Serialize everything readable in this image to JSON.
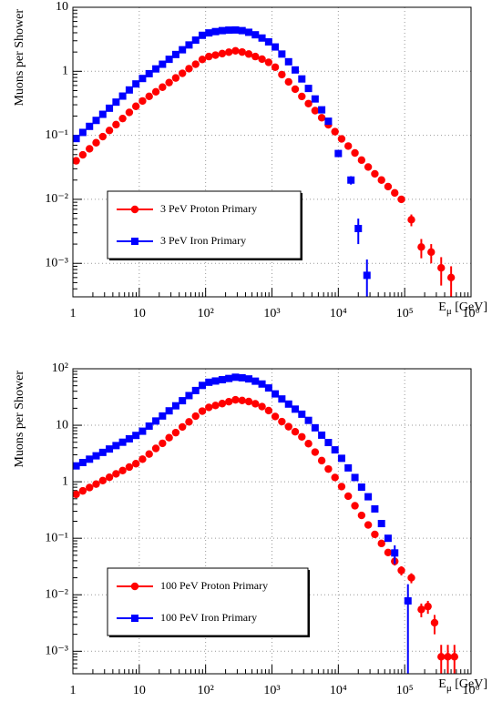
{
  "chart_data": [
    {
      "type": "scatter",
      "ylabel": "Muons per Shower",
      "xlabel": [
        "E",
        "μ",
        " [GeV]"
      ],
      "xlog": true,
      "ylog": true,
      "grid": true,
      "legend": "lower left",
      "xlim": [
        1,
        1000000
      ],
      "ylim": [
        0.0003,
        10
      ],
      "xticks": [
        1,
        10,
        {
          "value": 100,
          "label": "10²"
        },
        {
          "value": 1000,
          "label": "10³"
        },
        {
          "value": 10000,
          "label": "10⁴"
        },
        {
          "value": 100000,
          "label": "10⁵"
        },
        {
          "value": 1000000,
          "label": "10⁶"
        }
      ],
      "yticks": [
        {
          "value": 0.001,
          "label": "10⁻³"
        },
        {
          "value": 0.01,
          "label": "10⁻²"
        },
        {
          "value": 0.1,
          "label": "10⁻¹"
        },
        1,
        10
      ],
      "series": [
        {
          "name": "3 PeV Proton Primary",
          "color": "#ff0000",
          "marker": "circle",
          "x": [
            1.12,
            1.41,
            1.78,
            2.24,
            2.82,
            3.55,
            4.47,
            5.62,
            7.08,
            8.91,
            11.2,
            14.1,
            17.8,
            22.4,
            28.2,
            35.5,
            44.7,
            56.2,
            70.8,
            89.1,
            112,
            141,
            178,
            224,
            282,
            355,
            447,
            562,
            708,
            891,
            1120,
            1410,
            1780,
            2240,
            2820,
            3550,
            4470,
            5620,
            7080,
            8910,
            11200,
            14100,
            17800,
            22400,
            28200,
            35500,
            44700,
            56200,
            70800,
            89100,
            126000,
            178000,
            251000,
            355000,
            501000
          ],
          "values": [
            0.04,
            0.0495,
            0.0615,
            0.0766,
            0.0953,
            0.119,
            0.147,
            0.183,
            0.228,
            0.284,
            0.344,
            0.406,
            0.479,
            0.565,
            0.667,
            0.787,
            0.929,
            1.1,
            1.29,
            1.53,
            1.7,
            1.79,
            1.89,
            1.99,
            2.09,
            2.0,
            1.86,
            1.7,
            1.55,
            1.38,
            1.16,
            0.889,
            0.684,
            0.526,
            0.405,
            0.313,
            0.243,
            0.188,
            0.146,
            0.114,
            0.088,
            0.068,
            0.053,
            0.041,
            0.032,
            0.025,
            0.02,
            0.0158,
            0.0126,
            0.01,
            0.0048,
            0.0018,
            0.0015,
            0.00085,
            0.0006
          ],
          "errors": [
            null,
            null,
            null,
            null,
            null,
            null,
            null,
            null,
            null,
            null,
            null,
            null,
            null,
            null,
            null,
            null,
            null,
            null,
            null,
            null,
            null,
            null,
            null,
            null,
            null,
            null,
            null,
            null,
            null,
            null,
            null,
            null,
            null,
            null,
            null,
            null,
            null,
            null,
            null,
            null,
            null,
            null,
            null,
            null,
            null,
            null,
            null,
            null,
            null,
            null,
            0.001,
            0.0006,
            0.0005,
            0.0004,
            0.0003
          ]
        },
        {
          "name": "3 PeV Iron Primary",
          "color": "#0000ff",
          "marker": "square",
          "x": [
            1.12,
            1.41,
            1.78,
            2.24,
            2.82,
            3.55,
            4.47,
            5.62,
            7.08,
            8.91,
            11.2,
            14.1,
            17.8,
            22.4,
            28.2,
            35.5,
            44.7,
            56.2,
            70.8,
            89.1,
            112,
            141,
            178,
            224,
            282,
            355,
            447,
            562,
            708,
            891,
            1120,
            1410,
            1780,
            2240,
            2820,
            3550,
            4470,
            5620,
            7080,
            10000,
            15500,
            20000,
            27000
          ],
          "values": [
            0.089,
            0.111,
            0.138,
            0.171,
            0.213,
            0.265,
            0.33,
            0.41,
            0.511,
            0.635,
            0.772,
            0.918,
            1.09,
            1.29,
            1.54,
            1.83,
            2.17,
            2.58,
            3.07,
            3.65,
            3.98,
            4.17,
            4.32,
            4.4,
            4.42,
            4.32,
            4.07,
            3.72,
            3.31,
            2.88,
            2.4,
            1.86,
            1.41,
            1.05,
            0.76,
            0.54,
            0.37,
            0.25,
            0.166,
            0.052,
            0.02,
            0.0035,
            0.00065
          ],
          "errors": [
            null,
            null,
            null,
            null,
            null,
            null,
            null,
            null,
            null,
            null,
            null,
            null,
            null,
            null,
            null,
            null,
            null,
            null,
            null,
            null,
            null,
            null,
            null,
            null,
            null,
            null,
            null,
            null,
            null,
            null,
            null,
            null,
            null,
            null,
            null,
            null,
            null,
            null,
            null,
            null,
            0.003,
            0.0015,
            0.0005
          ]
        }
      ]
    },
    {
      "type": "scatter",
      "ylabel": "Muons per Shower",
      "xlabel": [
        "E",
        "μ",
        " [GeV]"
      ],
      "xlog": true,
      "ylog": true,
      "grid": true,
      "legend": "lower left",
      "xlim": [
        1,
        1000000
      ],
      "ylim": [
        0.0004,
        100
      ],
      "xticks": [
        1,
        10,
        {
          "value": 100,
          "label": "10²"
        },
        {
          "value": 1000,
          "label": "10³"
        },
        {
          "value": 10000,
          "label": "10⁴"
        },
        {
          "value": 100000,
          "label": "10⁵"
        },
        {
          "value": 1000000,
          "label": "10⁶"
        }
      ],
      "yticks": [
        {
          "value": 0.001,
          "label": "10⁻³"
        },
        {
          "value": 0.01,
          "label": "10⁻²"
        },
        {
          "value": 0.1,
          "label": "10⁻¹"
        },
        1,
        10,
        {
          "value": 100,
          "label": "10²"
        }
      ],
      "series": [
        {
          "name": "100 PeV Proton Primary",
          "color": "#ff0000",
          "marker": "circle",
          "x": [
            1.12,
            1.41,
            1.78,
            2.24,
            2.82,
            3.55,
            4.47,
            5.62,
            7.08,
            8.91,
            11.2,
            14.1,
            17.8,
            22.4,
            28.2,
            35.5,
            44.7,
            56.2,
            70.8,
            89.1,
            112,
            141,
            178,
            224,
            282,
            355,
            447,
            562,
            708,
            891,
            1120,
            1410,
            1780,
            2240,
            2820,
            3550,
            4470,
            5620,
            7080,
            8910,
            11200,
            14100,
            17800,
            22400,
            28200,
            35500,
            44700,
            56200,
            70800,
            89100,
            126000,
            178000,
            224000,
            282000,
            355000,
            447000,
            562000
          ],
          "values": [
            0.6,
            0.69,
            0.79,
            0.91,
            1.05,
            1.2,
            1.38,
            1.58,
            1.82,
            2.09,
            2.51,
            3.09,
            3.89,
            4.79,
            6.03,
            7.41,
            9.33,
            11.5,
            14.5,
            17.8,
            20.7,
            22.4,
            24.2,
            26.1,
            28.2,
            27.5,
            26.3,
            24.0,
            21.4,
            18.2,
            14.3,
            11.6,
            9.44,
            7.67,
            6.24,
            4.73,
            3.35,
            2.37,
            1.68,
            1.19,
            0.822,
            0.556,
            0.376,
            0.254,
            0.172,
            0.117,
            0.081,
            0.056,
            0.039,
            0.027,
            0.02,
            0.0055,
            0.0062,
            0.0032,
            0.0008,
            0.0008,
            0.0008
          ],
          "errors": [
            null,
            null,
            null,
            null,
            null,
            null,
            null,
            null,
            null,
            null,
            null,
            null,
            null,
            null,
            null,
            null,
            null,
            null,
            null,
            null,
            null,
            null,
            null,
            null,
            null,
            null,
            null,
            null,
            null,
            null,
            null,
            null,
            null,
            null,
            null,
            null,
            null,
            null,
            null,
            null,
            null,
            null,
            null,
            null,
            null,
            null,
            null,
            0.006,
            0.006,
            0.005,
            0.004,
            0.0015,
            0.0016,
            0.0012,
            0.0005,
            0.0005,
            0.0005
          ]
        },
        {
          "name": "100 PeV Iron Primary",
          "color": "#0000ff",
          "marker": "square",
          "x": [
            1.12,
            1.41,
            1.78,
            2.24,
            2.82,
            3.55,
            4.47,
            5.62,
            7.08,
            8.91,
            11.2,
            14.1,
            17.8,
            22.4,
            28.2,
            35.5,
            44.7,
            56.2,
            70.8,
            89.1,
            112,
            141,
            178,
            224,
            282,
            355,
            447,
            562,
            708,
            891,
            1120,
            1410,
            1780,
            2240,
            2820,
            3550,
            4470,
            5620,
            7080,
            8910,
            11200,
            14100,
            17800,
            22400,
            28200,
            35500,
            44700,
            56200,
            70800,
            112000
          ],
          "values": [
            1.91,
            2.19,
            2.51,
            2.88,
            3.31,
            3.8,
            4.37,
            5.01,
            5.75,
            6.61,
            7.85,
            9.66,
            11.9,
            14.6,
            18.0,
            22.1,
            27.2,
            33.5,
            41.2,
            50.7,
            57.7,
            60.7,
            64.0,
            67.3,
            70.8,
            69.2,
            66.1,
            60.3,
            53.7,
            45.7,
            35.9,
            29.2,
            23.7,
            19.3,
            15.7,
            12.2,
            9.02,
            6.68,
            4.95,
            3.67,
            2.6,
            1.76,
            1.19,
            0.804,
            0.543,
            0.331,
            0.182,
            0.1,
            0.055,
            0.0078
          ],
          "errors": [
            null,
            null,
            null,
            null,
            null,
            null,
            null,
            null,
            null,
            null,
            null,
            null,
            null,
            null,
            null,
            null,
            null,
            null,
            null,
            null,
            null,
            null,
            null,
            null,
            null,
            null,
            null,
            null,
            null,
            null,
            null,
            null,
            null,
            null,
            null,
            null,
            null,
            null,
            null,
            null,
            null,
            null,
            null,
            null,
            null,
            null,
            null,
            null,
            0.02,
            0.0076
          ]
        }
      ]
    }
  ]
}
